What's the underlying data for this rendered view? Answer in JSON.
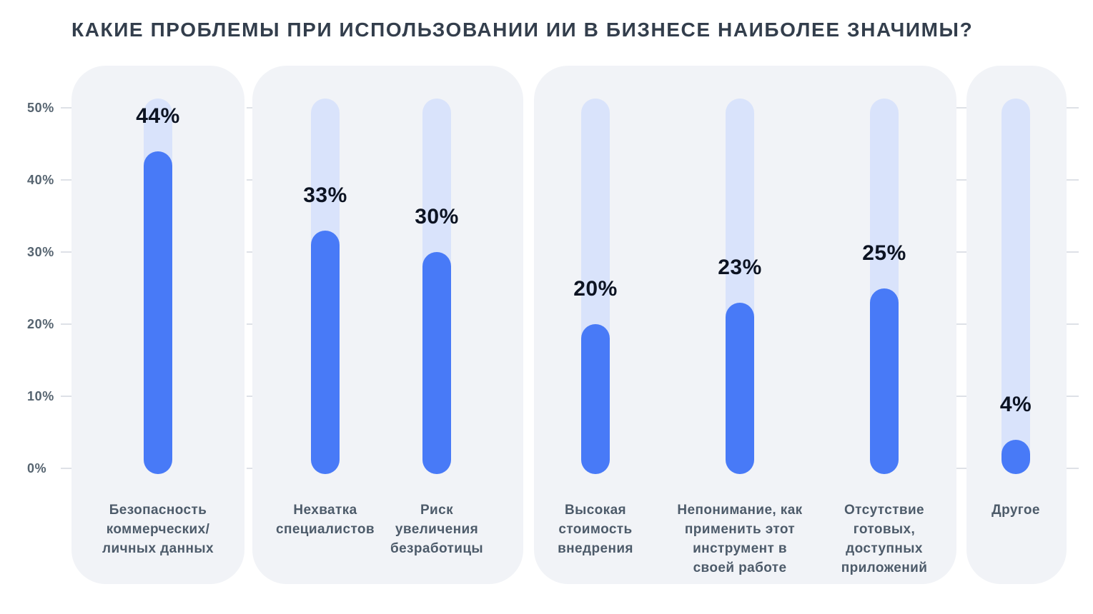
{
  "chart_data": {
    "type": "bar",
    "title": "КАКИЕ ПРОБЛЕМЫ ПРИ ИСПОЛЬЗОВАНИИ ИИ В БИЗНЕСЕ НАИБОЛЕЕ ЗНАЧИМЫ?",
    "unit": "%",
    "ylim": [
      0,
      51
    ],
    "grid": "dashed-horizontal",
    "legend": "none",
    "yticks": [
      0,
      10,
      20,
      30,
      40,
      50
    ],
    "ytick_labels": [
      "0%",
      "10%",
      "20%",
      "30%",
      "40%",
      "50%"
    ],
    "groups": [
      {
        "bars": [
          {
            "label": "Безопасность коммерческих/ личных данных",
            "label_lines": [
              "Безопасность",
              "коммерческих/",
              "личных данных"
            ],
            "value": 44,
            "value_label": "44%"
          }
        ]
      },
      {
        "bars": [
          {
            "label": "Нехватка специалистов",
            "label_lines": [
              "Нехватка",
              "специалистов"
            ],
            "value": 33,
            "value_label": "33%"
          },
          {
            "label": "Риск увеличения безработицы",
            "label_lines": [
              "Риск",
              "увеличения",
              "безработицы"
            ],
            "value": 30,
            "value_label": "30%"
          }
        ]
      },
      {
        "bars": [
          {
            "label": "Высокая стоимость внедрения",
            "label_lines": [
              "Высокая",
              "стоимость",
              "внедрения"
            ],
            "value": 20,
            "value_label": "20%"
          },
          {
            "label": "Непонимание, как применить этот инструмент в своей работе",
            "label_lines": [
              "Непонимание, как",
              "применить этот",
              "инструмент в",
              "своей работе"
            ],
            "value": 23,
            "value_label": "23%"
          },
          {
            "label": "Отсутствие готовых, доступных приложений",
            "label_lines": [
              "Отсутствие",
              "готовых,",
              "доступных",
              "приложений"
            ],
            "value": 25,
            "value_label": "25%"
          }
        ]
      },
      {
        "bars": [
          {
            "label": "Другое",
            "label_lines": [
              "Другое"
            ],
            "value": 4,
            "value_label": "4%"
          }
        ]
      }
    ],
    "colors": {
      "bar": "#487AF7",
      "track": "#D9E3FB",
      "panel": "#F1F3F7",
      "grid": "#DEE1E7",
      "title": "#333E4C",
      "value_label": "#0C1322",
      "category_label": "#4D5B6A",
      "axis_label": "#566470",
      "background": "#FFFFFF"
    }
  }
}
